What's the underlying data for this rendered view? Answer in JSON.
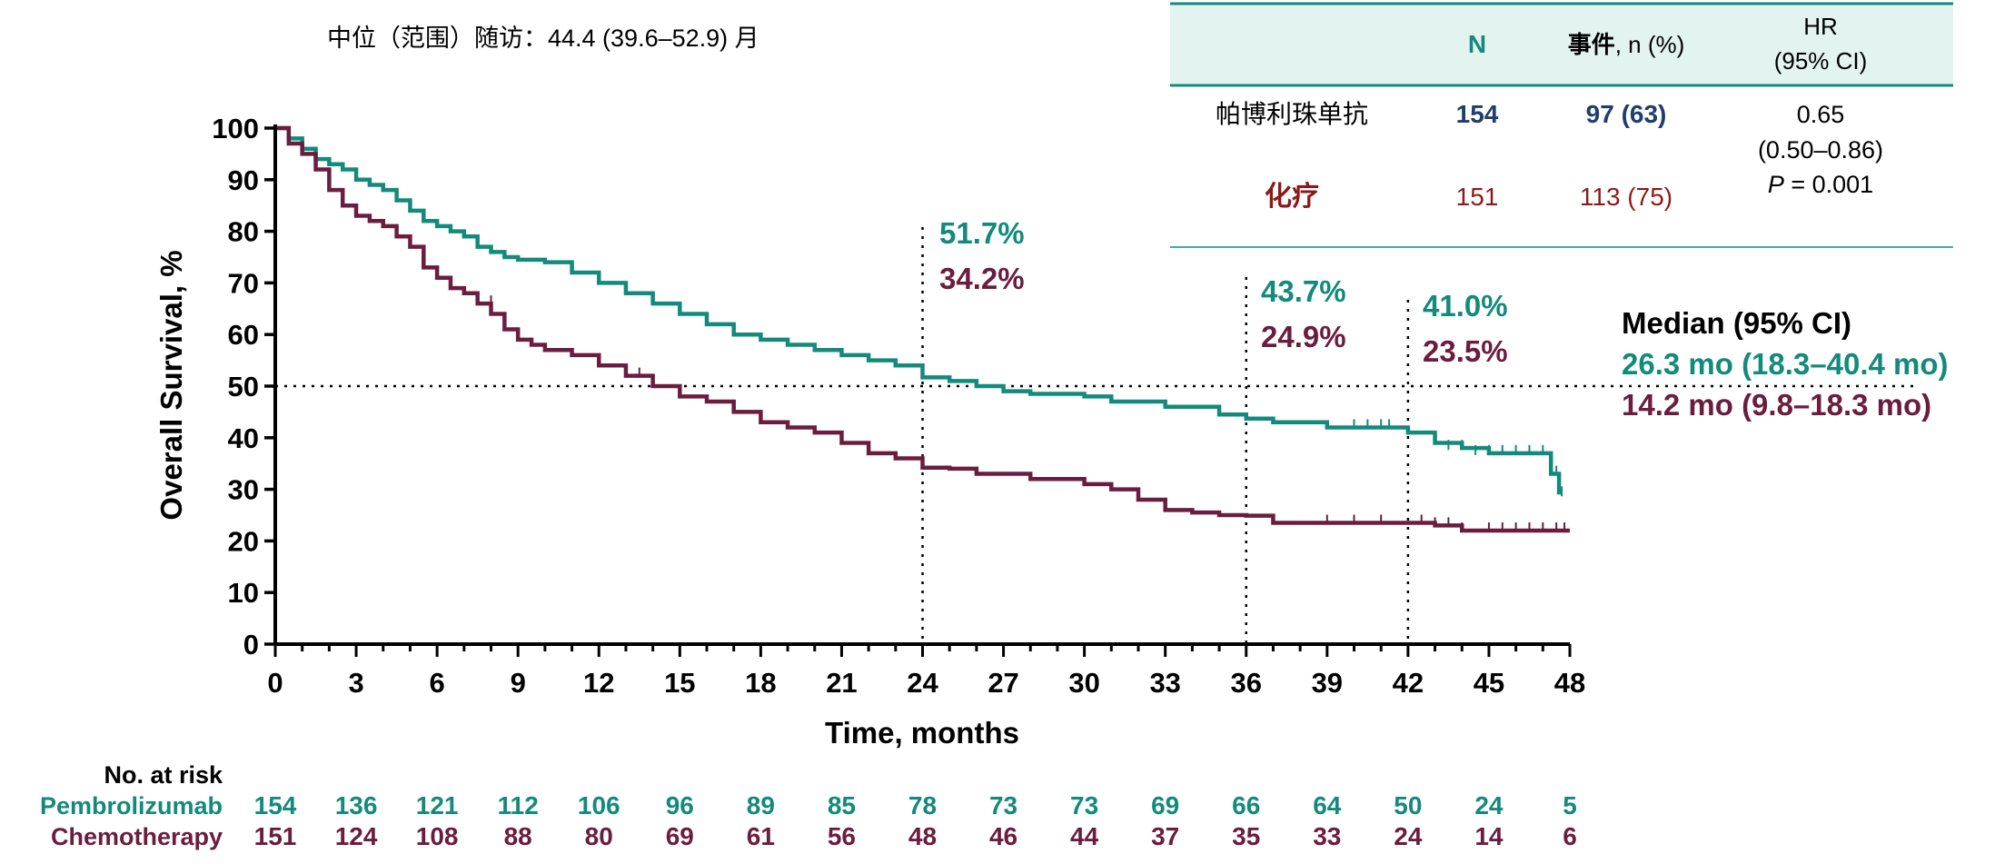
{
  "colors": {
    "pembro": "#138a7c",
    "chemo": "#6b1d3f",
    "chemo_label_red": "#8b1a1a",
    "table_header_bg": "#e3f4f0",
    "table_border": "#138a7c",
    "n_pembro": "#1f3e6b",
    "axis": "#000000"
  },
  "followup_text": "中位（范围）随访：44.4 (39.6–52.9) 月",
  "table": {
    "headers": {
      "n": "N",
      "events_cn": "事件",
      "events_rest": ", n (%)",
      "hr_line1": "HR",
      "hr_line2": "(95% CI)"
    },
    "rows": [
      {
        "label": "帕博利珠单抗",
        "n": "154",
        "events": "97 (63)"
      },
      {
        "label": "化疗",
        "n": "151",
        "events": "113 (75)"
      }
    ],
    "hr_value": "0.65",
    "hr_ci": "(0.50–0.86)",
    "p_label": "P",
    "p_value": " = 0.001"
  },
  "median": {
    "title": "Median (95% CI)",
    "pembro": "26.3 mo (18.3–40.4 mo)",
    "chemo": "14.2 mo (9.8–18.3 mo)"
  },
  "milestones": [
    {
      "month": 24,
      "pembro": "51.7%",
      "chemo": "34.2%"
    },
    {
      "month": 36,
      "pembro": "43.7%",
      "chemo": "24.9%"
    },
    {
      "month": 42,
      "pembro": "41.0%",
      "chemo": "23.5%"
    }
  ],
  "risk_table": {
    "title": "No. at risk",
    "rows": [
      {
        "name": "Pembrolizumab",
        "values": [
          154,
          136,
          121,
          112,
          106,
          96,
          89,
          85,
          78,
          73,
          73,
          69,
          66,
          64,
          50,
          24,
          5
        ]
      },
      {
        "name": "Chemotherapy",
        "values": [
          151,
          124,
          108,
          88,
          80,
          69,
          61,
          56,
          48,
          46,
          44,
          37,
          35,
          33,
          24,
          14,
          6
        ]
      }
    ]
  },
  "chart_data": {
    "type": "line",
    "xlabel": "Time, months",
    "ylabel": "Overall Survival, %",
    "xlim": [
      0,
      48
    ],
    "ylim": [
      0,
      100
    ],
    "xticks": [
      0,
      3,
      6,
      9,
      12,
      15,
      18,
      21,
      24,
      27,
      30,
      33,
      36,
      39,
      42,
      45,
      48
    ],
    "yticks": [
      0,
      10,
      20,
      30,
      40,
      50,
      60,
      70,
      80,
      90,
      100
    ],
    "reference_line_y": 50,
    "reference_lines_x": [
      24,
      36,
      42
    ],
    "series": [
      {
        "name": "Pembrolizumab",
        "step": true,
        "points": [
          [
            0,
            100
          ],
          [
            0.5,
            98
          ],
          [
            1,
            96
          ],
          [
            1.5,
            94
          ],
          [
            2,
            93
          ],
          [
            2.5,
            92
          ],
          [
            3,
            90
          ],
          [
            3.5,
            89
          ],
          [
            4,
            88
          ],
          [
            4.5,
            86
          ],
          [
            5,
            84
          ],
          [
            5.5,
            82
          ],
          [
            6,
            81
          ],
          [
            6.5,
            80
          ],
          [
            7,
            79
          ],
          [
            7.5,
            77
          ],
          [
            8,
            76
          ],
          [
            8.5,
            75
          ],
          [
            9,
            74.5
          ],
          [
            10,
            74
          ],
          [
            11,
            72
          ],
          [
            12,
            70
          ],
          [
            13,
            68
          ],
          [
            14,
            66
          ],
          [
            15,
            64
          ],
          [
            16,
            62
          ],
          [
            17,
            60
          ],
          [
            18,
            59
          ],
          [
            19,
            58
          ],
          [
            20,
            57
          ],
          [
            21,
            56
          ],
          [
            22,
            55
          ],
          [
            23,
            54
          ],
          [
            24,
            51.7
          ],
          [
            25,
            51
          ],
          [
            26,
            50
          ],
          [
            27,
            49
          ],
          [
            28,
            48.5
          ],
          [
            30,
            48
          ],
          [
            31,
            47
          ],
          [
            33,
            46
          ],
          [
            35,
            44.5
          ],
          [
            36,
            43.7
          ],
          [
            37,
            43
          ],
          [
            39,
            42
          ],
          [
            41,
            42
          ],
          [
            42,
            41
          ],
          [
            43,
            39
          ],
          [
            44,
            38
          ],
          [
            45,
            37
          ],
          [
            46,
            37
          ],
          [
            47,
            37
          ],
          [
            47.3,
            33
          ],
          [
            47.6,
            29
          ]
        ]
      },
      {
        "name": "Chemotherapy",
        "step": true,
        "points": [
          [
            0,
            100
          ],
          [
            0.5,
            97
          ],
          [
            1,
            95
          ],
          [
            1.5,
            92
          ],
          [
            2,
            88
          ],
          [
            2.5,
            85
          ],
          [
            3,
            83
          ],
          [
            3.5,
            82
          ],
          [
            4,
            81
          ],
          [
            4.5,
            79
          ],
          [
            5,
            77
          ],
          [
            5.5,
            73
          ],
          [
            6,
            71
          ],
          [
            6.5,
            69
          ],
          [
            7,
            68
          ],
          [
            7.5,
            66
          ],
          [
            8,
            64
          ],
          [
            8.5,
            61
          ],
          [
            9,
            59
          ],
          [
            9.5,
            58
          ],
          [
            10,
            57
          ],
          [
            11,
            56
          ],
          [
            12,
            54
          ],
          [
            13,
            52
          ],
          [
            14,
            50
          ],
          [
            15,
            48
          ],
          [
            16,
            47
          ],
          [
            17,
            45
          ],
          [
            18,
            43
          ],
          [
            19,
            42
          ],
          [
            20,
            41
          ],
          [
            21,
            39
          ],
          [
            22,
            37
          ],
          [
            23,
            36
          ],
          [
            24,
            34.2
          ],
          [
            25,
            34
          ],
          [
            26,
            33
          ],
          [
            27,
            33
          ],
          [
            28,
            32
          ],
          [
            30,
            31
          ],
          [
            31,
            30
          ],
          [
            32,
            28
          ],
          [
            33,
            26
          ],
          [
            34,
            25.5
          ],
          [
            35,
            25
          ],
          [
            36,
            24.9
          ],
          [
            37,
            23.5
          ],
          [
            39,
            23.5
          ],
          [
            41,
            23.5
          ],
          [
            42,
            23.5
          ],
          [
            43,
            23
          ],
          [
            44,
            22
          ],
          [
            46,
            22
          ],
          [
            48,
            22
          ]
        ]
      }
    ]
  }
}
